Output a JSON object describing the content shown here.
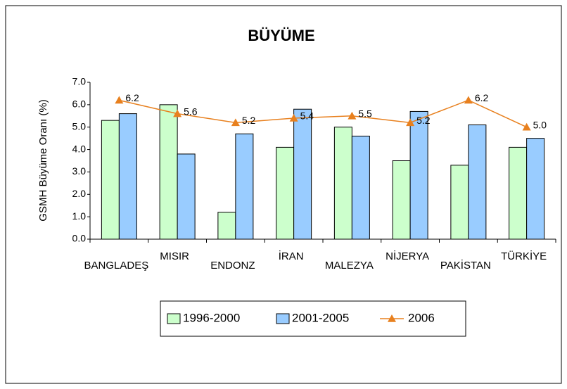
{
  "chart_data": {
    "type": "bar",
    "title": "BÜYÜME",
    "y_label": "GSMH Büyüme Oranı (%)",
    "categories": [
      "BANGLADEŞ",
      "MISIR",
      "ENDONZ",
      "İRAN",
      "MALEZYA",
      "NİJERYA",
      "PAKİSTAN",
      "TÜRKİYE"
    ],
    "series": [
      {
        "name": "1996-2000",
        "type": "bar",
        "color": "#ccffcc",
        "values": [
          5.3,
          6.0,
          1.2,
          4.1,
          5.0,
          3.5,
          3.3,
          4.1
        ]
      },
      {
        "name": "2001-2005",
        "type": "bar",
        "color": "#99ccff",
        "values": [
          5.6,
          3.8,
          4.7,
          5.8,
          4.6,
          5.7,
          5.1,
          4.5
        ]
      },
      {
        "name": "2006",
        "type": "line",
        "color": "#e8801e",
        "values": [
          6.2,
          5.6,
          5.2,
          5.4,
          5.5,
          5.2,
          6.2,
          5.0
        ],
        "value_labels": [
          "6.2",
          "5.6",
          "5.2",
          "5.4",
          "5.5",
          "5.2",
          "6.2",
          "5.0"
        ]
      }
    ],
    "ylim": [
      0,
      7
    ],
    "yticks": [
      {
        "value": 0,
        "label": "0.0"
      },
      {
        "value": 1,
        "label": "1.0"
      },
      {
        "value": 2,
        "label": "2.0"
      },
      {
        "value": 3,
        "label": "3.0"
      },
      {
        "value": 4,
        "label": "4.0"
      },
      {
        "value": 5,
        "label": "5.0"
      },
      {
        "value": 6,
        "label": "6.0"
      },
      {
        "value": 7,
        "label": "7.0"
      }
    ],
    "legend": "bottom"
  }
}
